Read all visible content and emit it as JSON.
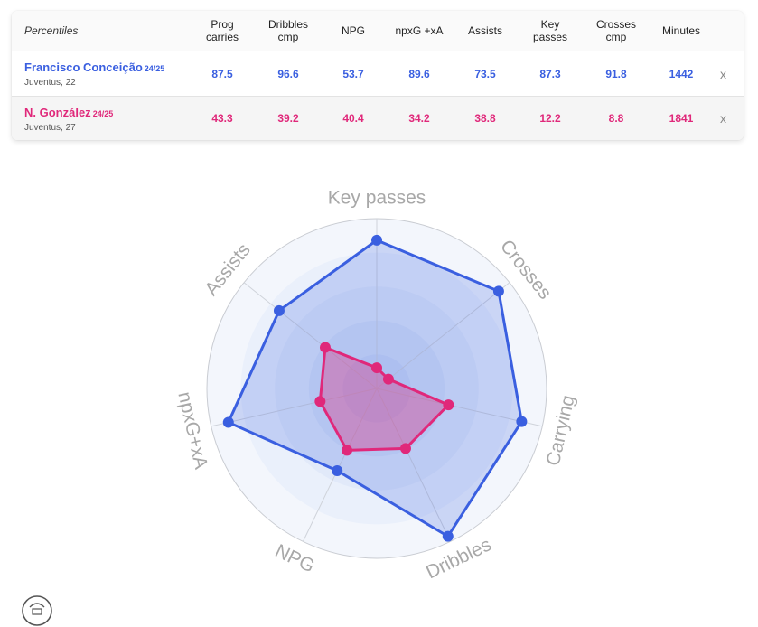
{
  "table": {
    "header_label": "Percentiles",
    "columns": [
      {
        "l1": "Prog",
        "l2": "carries"
      },
      {
        "l1": "Dribbles",
        "l2": "cmp"
      },
      {
        "l1": "NPG",
        "l2": ""
      },
      {
        "l1": "npxG +xA",
        "l2": ""
      },
      {
        "l1": "Assists",
        "l2": ""
      },
      {
        "l1": "Key",
        "l2": "passes"
      },
      {
        "l1": "Crosses",
        "l2": "cmp"
      },
      {
        "l1": "Minutes",
        "l2": ""
      }
    ],
    "players": [
      {
        "name": "Francisco Conceição",
        "season": "24/25",
        "team": "Juventus, 22",
        "values": [
          "87.5",
          "96.6",
          "53.7",
          "89.6",
          "73.5",
          "87.3",
          "91.8",
          "1442"
        ],
        "remove_label": "x",
        "color": "#3a5fe0"
      },
      {
        "name": "N. González",
        "season": "24/25",
        "team": "Juventus, 27",
        "values": [
          "43.3",
          "39.2",
          "40.4",
          "34.2",
          "38.8",
          "12.2",
          "8.8",
          "1841"
        ],
        "remove_label": "x",
        "color": "#e0287a"
      }
    ]
  },
  "chart_data": {
    "type": "radar",
    "axes": [
      "Key passes",
      "Crosses",
      "Carrying",
      "Dribbles",
      "NPG",
      "npxG+xA",
      "Assists"
    ],
    "range": [
      0,
      100
    ],
    "series": [
      {
        "name": "Francisco Conceição",
        "color": "#3a5fe0",
        "values": [
          87.3,
          91.8,
          87.5,
          96.6,
          53.7,
          89.6,
          73.5
        ]
      },
      {
        "name": "N. González",
        "color": "#e0287a",
        "values": [
          12.2,
          8.8,
          43.3,
          39.2,
          40.4,
          34.2,
          38.8
        ]
      }
    ],
    "rings": 5,
    "grid": true
  }
}
